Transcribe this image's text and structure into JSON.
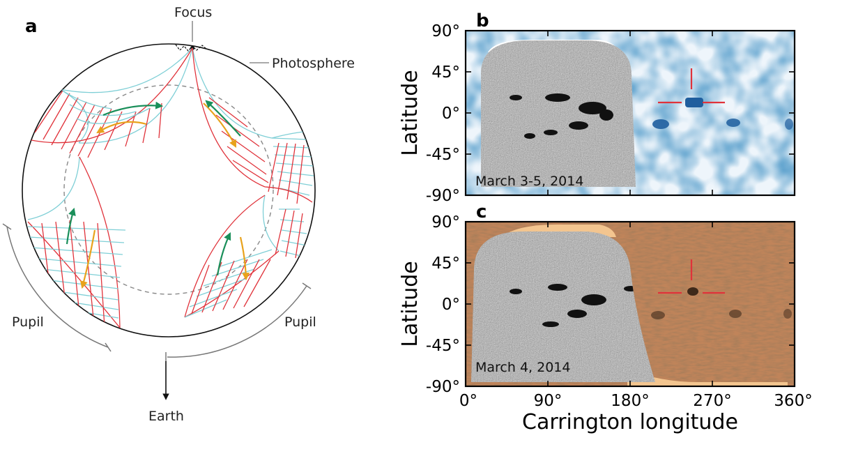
{
  "panel_a": {
    "letter": "a",
    "labels": {
      "focus": "Focus",
      "photosphere": "Photosphere",
      "pupil_left": "Pupil",
      "pupil_right": "Pupil",
      "earth": "Earth"
    },
    "colors": {
      "cyan": "#7fcfd6",
      "red": "#e0323a",
      "green": "#1a8f5a",
      "orange": "#e8a21c",
      "dashed": "#888888"
    }
  },
  "panel_b": {
    "letter": "b",
    "date": "March 3-5, 2014",
    "colors": {
      "far_side": "#1f5e9e",
      "near_side": "#777777"
    }
  },
  "panel_c": {
    "letter": "c",
    "date": "March 4, 2014",
    "colors": {
      "far_side": "#b9774a",
      "near_side": "#777777",
      "cap": "#f3c58f"
    }
  },
  "axes": {
    "ylabel": "Latitude",
    "xlabel": "Carrington longitude",
    "yticks": [
      "90°",
      "45°",
      "0°",
      "-45°",
      "-90°"
    ],
    "xticks": [
      "0°",
      "90°",
      "180°",
      "270°",
      "360°"
    ]
  }
}
